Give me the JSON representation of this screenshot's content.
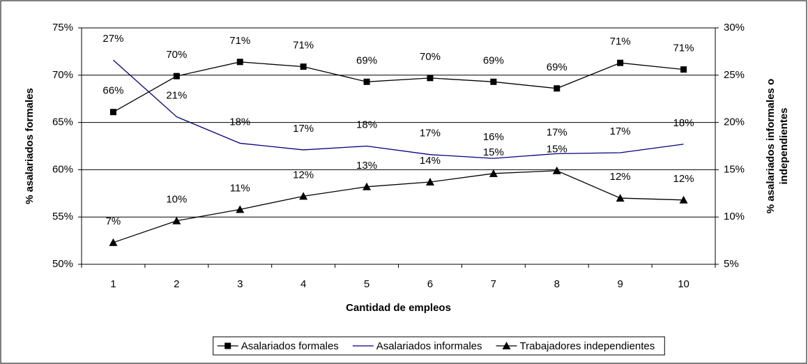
{
  "chart_data": {
    "type": "line",
    "xlabel": "Cantidad de empleos",
    "ylabel": "% asalariados formales",
    "y2label": [
      "% asalariados informales o",
      "independientes"
    ],
    "categories": [
      "1",
      "2",
      "3",
      "4",
      "5",
      "6",
      "7",
      "8",
      "9",
      "10"
    ],
    "ylim": [
      50,
      75
    ],
    "yticks": [
      {
        "value": 50,
        "label": "50%"
      },
      {
        "value": 55,
        "label": "55%"
      },
      {
        "value": 60,
        "label": "60%"
      },
      {
        "value": 65,
        "label": "65%"
      },
      {
        "value": 70,
        "label": "70%"
      },
      {
        "value": 75,
        "label": "75%"
      }
    ],
    "y2lim": [
      5,
      30
    ],
    "y2ticks": [
      {
        "value": 5,
        "label": "5%"
      },
      {
        "value": 10,
        "label": "10%"
      },
      {
        "value": 15,
        "label": "15%"
      },
      {
        "value": 20,
        "label": "20%"
      },
      {
        "value": 25,
        "label": "25%"
      },
      {
        "value": 30,
        "label": "30%"
      }
    ],
    "grid": true,
    "legend": "bottom",
    "series": [
      {
        "name": "Asalariados formales",
        "color": "#000000",
        "marker": "square",
        "values": [
          66.1,
          69.9,
          71.4,
          70.9,
          69.3,
          69.7,
          69.3,
          68.6,
          71.3,
          70.6
        ],
        "value_labels": [
          "66%",
          "70%",
          "71%",
          "71%",
          "69%",
          "70%",
          "69%",
          "69%",
          "71%",
          "71%"
        ]
      },
      {
        "name": "Asalariados informales",
        "color": "#000080",
        "marker": "none",
        "axis": "y2",
        "values": [
          26.6,
          20.6,
          17.8,
          17.1,
          17.5,
          16.6,
          16.2,
          16.7,
          16.8,
          17.7
        ],
        "value_labels": [
          "27%",
          "21%",
          "18%",
          "17%",
          "18%",
          "17%",
          "16%",
          "17%",
          "17%",
          "18%"
        ]
      },
      {
        "name": "Trabajadores independientes",
        "color": "#000000",
        "marker": "triangle",
        "axis": "y2",
        "values": [
          7.3,
          9.6,
          10.8,
          12.2,
          13.2,
          13.7,
          14.6,
          14.9,
          12.0,
          11.8
        ],
        "value_labels": [
          "7%",
          "10%",
          "11%",
          "12%",
          "13%",
          "14%",
          "15%",
          "15%",
          "12%",
          "12%"
        ]
      }
    ]
  }
}
